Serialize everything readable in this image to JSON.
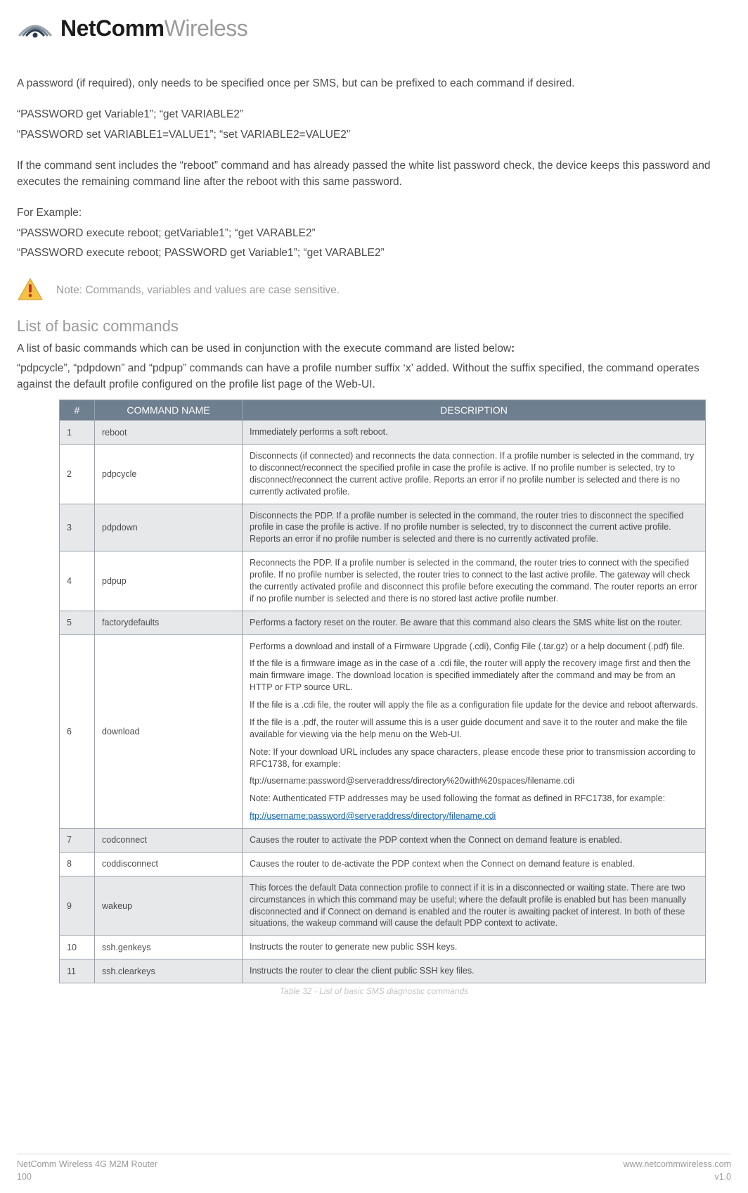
{
  "logo": {
    "bold": "NetComm",
    "light": "Wireless"
  },
  "p1": "A password (if required), only needs to be specified once per SMS, but can be prefixed to each command if desired.",
  "ex1a": "“PASSWORD get Variable1”; “get VARIABLE2”",
  "ex1b": "“PASSWORD set VARIABLE1=VALUE1”; “set VARIABLE2=VALUE2”",
  "p2": "If the command sent includes the “reboot” command and has already passed the white list password check, the device keeps this password and executes the remaining command line after the reboot with this same password.",
  "forExample": "For Example:",
  "ex2a": "“PASSWORD execute reboot; getVariable1”; “get VARABLE2”",
  "ex2b": "“PASSWORD execute reboot; PASSWORD get Variable1”; “get VARABLE2”",
  "note": "Note: Commands, variables and values are case sensitive.",
  "sectionTitle": "List of basic commands",
  "intro1_prefix": "A list of basic commands which can be used in conjunction with the execute command are listed below",
  "intro2": "“pdpcycle”, “pdpdown” and “pdpup” commands can have a profile number suffix ‘x’ added. Without the suffix specified, the command operates against the default profile configured on the profile list page of the Web-UI.",
  "table": {
    "headers": {
      "num": "#",
      "name": "COMMAND NAME",
      "desc": "DESCRIPTION"
    },
    "rows": [
      {
        "n": "1",
        "name": "reboot",
        "shade": true,
        "desc": [
          "Immediately performs a soft reboot."
        ]
      },
      {
        "n": "2",
        "name": "pdpcycle",
        "shade": false,
        "desc": [
          "Disconnects (if connected) and reconnects the data connection. If a profile number is selected in the command, try to disconnect/reconnect the specified profile in case the profile is active. If no profile number is selected, try to disconnect/reconnect the current active profile. Reports an error if no profile number is selected and there is no currently activated profile."
        ]
      },
      {
        "n": "3",
        "name": "pdpdown",
        "shade": true,
        "desc": [
          "Disconnects the PDP. If a profile number is selected in the command, the router tries to disconnect the specified profile in case the profile is active. If no profile number is selected, try to disconnect the current active profile. Reports an error if no profile number is selected and there is no currently activated profile."
        ]
      },
      {
        "n": "4",
        "name": "pdpup",
        "shade": false,
        "desc": [
          "Reconnects the PDP. If a profile number is selected in the command, the router tries to connect with the specified profile. If no profile number is selected, the router tries to connect to the last active profile. The gateway will check the currently activated profile and disconnect this profile before executing the command. The router reports an error if no profile number is selected and there is no stored last active profile number."
        ]
      },
      {
        "n": "5",
        "name": "factorydefaults",
        "shade": true,
        "desc": [
          "Performs a factory reset on the router. Be aware that this command also clears the SMS white list on the router."
        ]
      },
      {
        "n": "6",
        "name": "download",
        "shade": false,
        "desc": [
          "Performs a download and install of a Firmware Upgrade (.cdi), Config File (.tar.gz) or a help document (.pdf) file.",
          "If the file is a firmware image as in the case of a .cdi file, the router will apply the recovery image first and then the main firmware image. The download location is specified immediately after the command and may be from an HTTP or FTP source URL.",
          "If the file is a .cdi file, the router will apply the file as a configuration file update for the device and reboot afterwards.",
          "If the file is a .pdf, the router will assume this is a user guide document and save it to the router and make the file available for viewing via the help menu on the Web-UI.",
          "Note: If your download URL includes any space characters, please encode these prior to transmission according to RFC1738, for example:",
          "ftp://username:password@serveraddress/directory%20with%20spaces/filename.cdi",
          "Note: Authenticated FTP addresses may be used following the format as defined in RFC1738, for example:"
        ],
        "link": "ftp://username:password@serveraddress/directory/filename.cdi"
      },
      {
        "n": "7",
        "name": "codconnect",
        "shade": true,
        "desc": [
          "Causes the router to activate the PDP context when the Connect on demand feature is enabled."
        ]
      },
      {
        "n": "8",
        "name": "coddisconnect",
        "shade": false,
        "desc": [
          "Causes the router to de-activate the PDP context when the Connect on demand feature is enabled."
        ]
      },
      {
        "n": "9",
        "name": "wakeup",
        "shade": true,
        "desc": [
          "This forces the default Data connection profile to connect if it is in a disconnected or waiting state. There are two circumstances in which this command may be useful; where the default profile is enabled but has been manually disconnected and if Connect on demand is enabled and the router is awaiting packet of interest. In both of these situations, the wakeup command will cause the default PDP context to activate."
        ]
      },
      {
        "n": "10",
        "name": "ssh.genkeys",
        "shade": false,
        "desc": [
          "Instructs the router to generate new public SSH keys."
        ]
      },
      {
        "n": "11",
        "name": "ssh.clearkeys",
        "shade": true,
        "desc": [
          "Instructs the router to clear the client public SSH key files."
        ]
      }
    ],
    "caption": "Table 32 - List of basic SMS diagnostic commands"
  },
  "footer": {
    "product": "NetComm Wireless 4G M2M Router",
    "pageNum": "100",
    "site": "www.netcommwireless.com",
    "version": "v1.0"
  },
  "colors": {
    "header_bg": "#6e7f8f",
    "row_shade": "#e6e8ea",
    "border": "#9aa3ab",
    "muted": "#9a9a9a",
    "link": "#0b67b3",
    "warn_yellow": "#f6c244",
    "warn_red": "#c0392b",
    "logo_dark": "#2b3a47",
    "logo_light": "#9aa3ab"
  }
}
